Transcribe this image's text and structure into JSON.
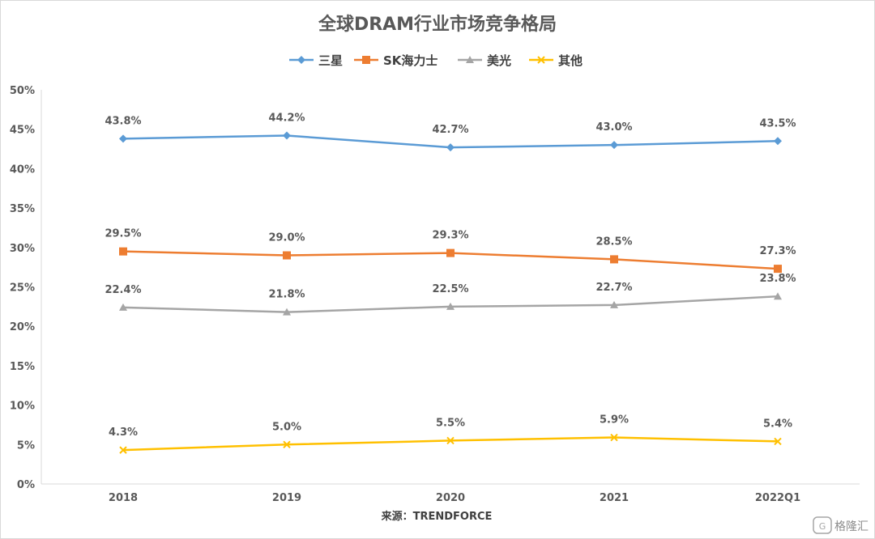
{
  "chart_data": {
    "type": "line",
    "title": "全球DRAM行业市场竞争格局",
    "categories": [
      "2018",
      "2019",
      "2020",
      "2021",
      "2022Q1"
    ],
    "series": [
      {
        "name": "三星",
        "values": [
          43.8,
          44.2,
          42.7,
          43.0,
          43.5
        ],
        "labels": [
          "43.8%",
          "44.2%",
          "42.7%",
          "43.0%",
          "43.5%"
        ],
        "color": "#5b9bd5",
        "marker": "diamond"
      },
      {
        "name": "SK海力士",
        "values": [
          29.5,
          29.0,
          29.3,
          28.5,
          27.3
        ],
        "labels": [
          "29.5%",
          "29.0%",
          "29.3%",
          "28.5%",
          "27.3%"
        ],
        "color": "#ed7d31",
        "marker": "square"
      },
      {
        "name": "美光",
        "values": [
          22.4,
          21.8,
          22.5,
          22.7,
          23.8
        ],
        "labels": [
          "22.4%",
          "21.8%",
          "22.5%",
          "22.7%",
          "23.8%"
        ],
        "color": "#a5a5a5",
        "marker": "triangle"
      },
      {
        "name": "其他",
        "values": [
          4.3,
          5.0,
          5.5,
          5.9,
          5.4
        ],
        "labels": [
          "4.3%",
          "5.0%",
          "5.5%",
          "5.9%",
          "5.4%"
        ],
        "color": "#ffc000",
        "marker": "x"
      }
    ],
    "ylim": [
      0,
      50
    ],
    "yticks": [
      "0%",
      "5%",
      "10%",
      "15%",
      "20%",
      "25%",
      "30%",
      "35%",
      "40%",
      "45%",
      "50%"
    ],
    "xlabel": "",
    "ylabel": "",
    "grid": false,
    "legend_position": "top",
    "source": "来源：TRENDFORCE"
  },
  "watermark": "格隆汇"
}
